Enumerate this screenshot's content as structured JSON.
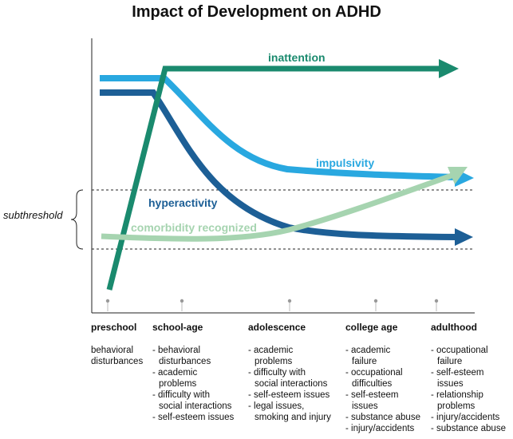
{
  "title": "Impact of Development on ADHD",
  "subthreshold_label": "subthreshold",
  "curves": {
    "inattention": {
      "label": "inattention",
      "color": "#1a8a6e"
    },
    "impulsivity": {
      "label": "impulsivity",
      "color": "#29a8e0"
    },
    "hyperactivity": {
      "label": "hyperactivity",
      "color": "#1d5f96"
    },
    "comorbidity": {
      "label": "comorbidity recognized",
      "color": "#a6d4b0"
    }
  },
  "stages": [
    {
      "name": "preschool",
      "items": [
        [
          "behavioral",
          "disturbances"
        ]
      ],
      "plain": true
    },
    {
      "name": "school-age",
      "items": [
        [
          "- behavioral",
          "disturbances"
        ],
        [
          "- academic",
          "problems"
        ],
        [
          "- difficulty with",
          "social interactions"
        ],
        [
          "- self-esteem issues"
        ]
      ]
    },
    {
      "name": "adolescence",
      "items": [
        [
          "- academic",
          "problems"
        ],
        [
          "- difficulty with",
          "social interactions"
        ],
        [
          "- self-esteem issues"
        ],
        [
          "- legal issues,",
          "smoking and injury"
        ]
      ]
    },
    {
      "name": "college age",
      "items": [
        [
          "- academic",
          "failure"
        ],
        [
          "- occupational",
          "difficulties"
        ],
        [
          "- self-esteem",
          "issues"
        ],
        [
          "- substance abuse"
        ],
        [
          "- injury/accidents"
        ]
      ]
    },
    {
      "name": "adulthood",
      "items": [
        [
          "- occupational",
          "failure"
        ],
        [
          "- self-esteem",
          "issues"
        ],
        [
          "- relationship",
          "problems"
        ],
        [
          "- injury/accidents"
        ],
        [
          "- substance abuse"
        ]
      ]
    }
  ]
}
